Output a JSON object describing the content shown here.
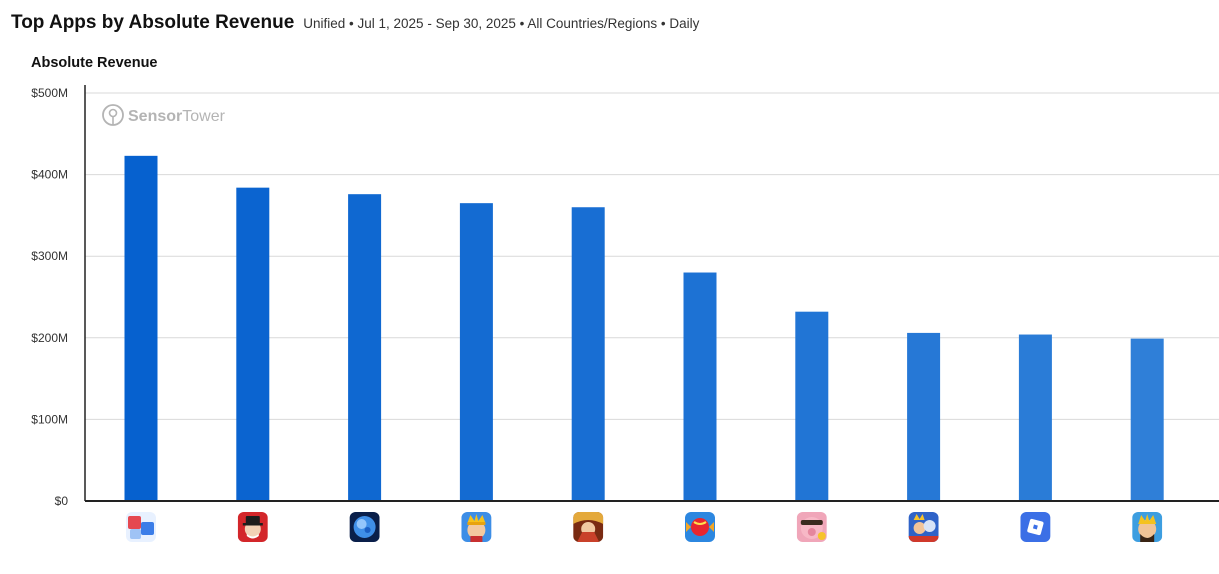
{
  "header": {
    "title": "Top Apps by Absolute Revenue",
    "subtitle": "Unified • Jul 1, 2025 - Sep 30, 2025 • All Countries/Regions • Daily"
  },
  "watermark": {
    "brand_bold": "Sensor",
    "brand_light": "Tower"
  },
  "colors": {
    "bar_dark": "#0661cf",
    "bar_light": "#2f7fd8",
    "grid": "#d9d9d9",
    "axis": "#222222"
  },
  "chart_data": {
    "type": "bar",
    "title": "Absolute Revenue",
    "ylim": [
      0,
      500
    ],
    "ytick_values": [
      0,
      100,
      200,
      300,
      400,
      500
    ],
    "ytick_labels": [
      "$0",
      "$100M",
      "$200M",
      "$300M",
      "$400M",
      "$500M"
    ],
    "grid": true,
    "legend": "none",
    "categories": [
      {
        "icon": "number-merge-puzzle-icon",
        "value": 423
      },
      {
        "icon": "monopoly-go-icon",
        "value": 384
      },
      {
        "icon": "blue-orb-icon",
        "value": 376
      },
      {
        "icon": "royal-match-icon",
        "value": 365
      },
      {
        "icon": "honor-of-kings-icon",
        "value": 360
      },
      {
        "icon": "candy-crush-icon",
        "value": 280
      },
      {
        "icon": "coin-master-icon",
        "value": 232
      },
      {
        "icon": "clash-royale-icon",
        "value": 206
      },
      {
        "icon": "roblox-icon",
        "value": 204
      },
      {
        "icon": "clash-of-clans-icon",
        "value": 199
      }
    ]
  }
}
